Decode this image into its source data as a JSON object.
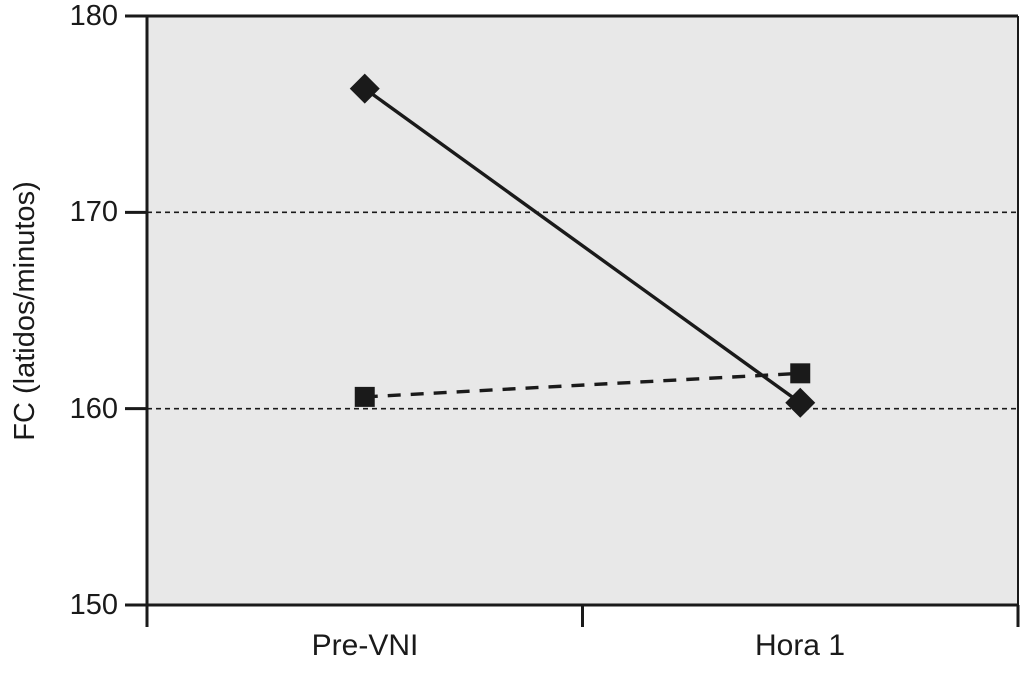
{
  "chart_data": {
    "type": "line",
    "title": "",
    "xlabel": "",
    "ylabel": "FC (latidos/minutos)",
    "categories": [
      "Pre-VNI",
      "Hora 1"
    ],
    "series": [
      {
        "id": "diamond-solid",
        "marker": "diamond",
        "line_style": "solid",
        "values": [
          176.3,
          160.3
        ]
      },
      {
        "id": "square-dashed",
        "marker": "square",
        "line_style": "dashed",
        "values": [
          160.6,
          161.8
        ]
      }
    ],
    "ylim": [
      150,
      180
    ],
    "yticks": [
      150,
      160,
      170,
      180
    ],
    "gridlines_y": [
      160,
      170
    ],
    "grid": "horizontal dashed gridlines at 160 and 170",
    "legend_position": "none",
    "plot_bg": "#e8e8e8",
    "page_bg": "#ffffff",
    "fg": "#1a1a1a"
  }
}
